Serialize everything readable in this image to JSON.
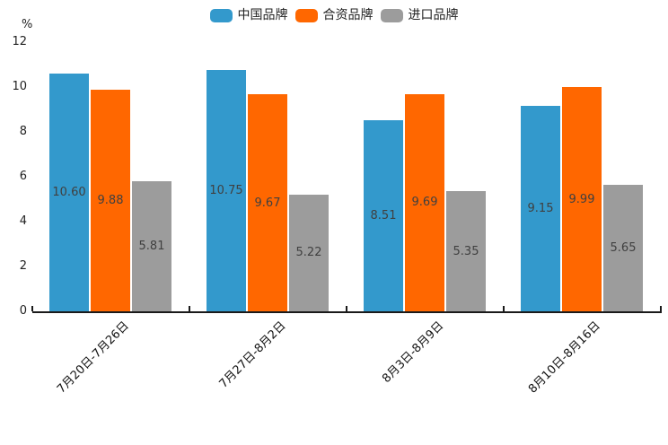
{
  "chart_data": {
    "type": "bar",
    "title": "",
    "xlabel": "",
    "ylabel": "%",
    "categories": [
      "7月20日-7月26日",
      "7月27日-8月2日",
      "8月3日-8月9日",
      "8月10日-8月16日"
    ],
    "series": [
      {
        "name": "中国品牌",
        "color": "#3399CC",
        "values": [
          10.6,
          10.75,
          8.51,
          9.15
        ]
      },
      {
        "name": "合资品牌",
        "color": "#FF6700",
        "values": [
          9.88,
          9.67,
          9.69,
          9.99
        ]
      },
      {
        "name": "进口品牌",
        "color": "#9C9C9C",
        "values": [
          5.81,
          5.22,
          5.35,
          5.65
        ]
      }
    ],
    "value_label_format": "2dp",
    "y_ticks": [
      0,
      2,
      4,
      6,
      8,
      10,
      12
    ],
    "ylim": [
      0,
      12
    ],
    "legend_position": "top",
    "grid": false,
    "colors": {
      "axis": "#1a1a1a",
      "value_label_text": "#404040",
      "tick_label_text": "#222222"
    }
  }
}
